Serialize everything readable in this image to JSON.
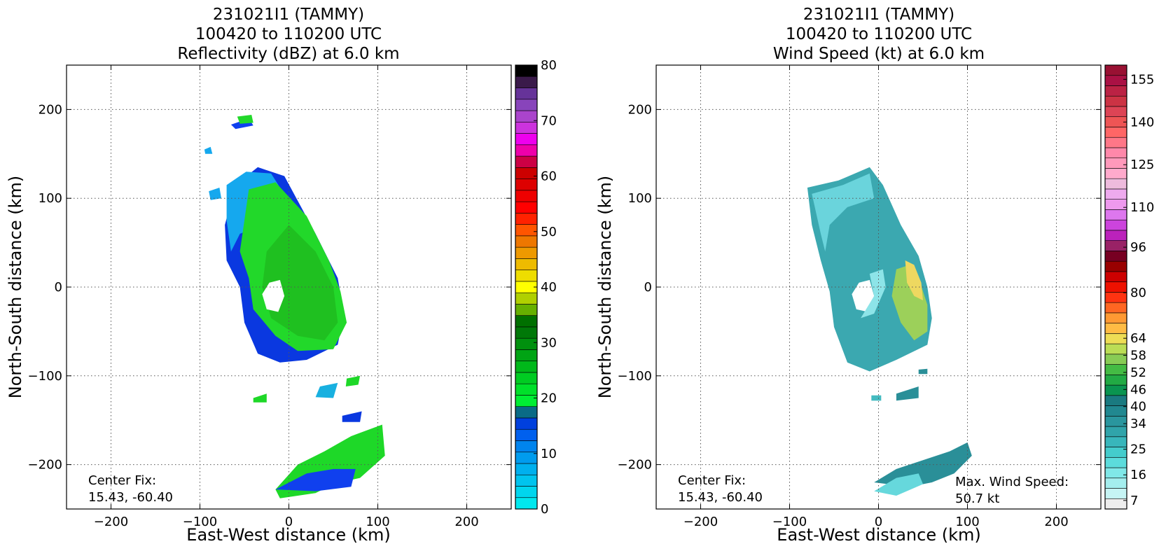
{
  "chart_data": [
    {
      "type": "heatmap",
      "title_lines": [
        "231021I1 (TAMMY)",
        "100420 to 110200 UTC",
        "Reflectivity (dBZ) at 6.0 km"
      ],
      "xlabel": "East-West distance (km)",
      "ylabel": "North-South distance (km)",
      "xlim": [
        -250,
        250
      ],
      "ylim": [
        -250,
        250
      ],
      "xticks": [
        -200,
        -100,
        0,
        100,
        200
      ],
      "yticks": [
        -200,
        -100,
        0,
        100,
        200
      ],
      "grid": true,
      "annotation_lines": [
        "Center Fix:",
        "15.43, -60.40"
      ],
      "colorbar": {
        "min": 0,
        "max": 80,
        "step": 2.5,
        "ticks": [
          0,
          10,
          20,
          30,
          40,
          50,
          60,
          70,
          80
        ],
        "colors": [
          "#00e8ee",
          "#00d6ee",
          "#00c4ee",
          "#00b0ee",
          "#009cee",
          "#0084ee",
          "#0060ee",
          "#0040dd",
          "#0a6b86",
          "#00ee33",
          "#00e02a",
          "#00cc22",
          "#00b81a",
          "#00a414",
          "#00900e",
          "#007808",
          "#007000",
          "#66b000",
          "#b0d000",
          "#ffff00",
          "#eedd00",
          "#eebb00",
          "#ee9900",
          "#ee7700",
          "#ff5500",
          "#ff2200",
          "#ff0000",
          "#ee0000",
          "#dd0000",
          "#cc0000",
          "#cc0044",
          "#ee00aa",
          "#ee00ee",
          "#cc33dd",
          "#aa44cc",
          "#8844bb",
          "#663399",
          "#3a1a4a",
          "#000000"
        ]
      },
      "regions": [
        {
          "name": "eyewall-outer",
          "color": "#0a38e0",
          "points": [
            [
              -60,
              115
            ],
            [
              -35,
              135
            ],
            [
              -5,
              125
            ],
            [
              30,
              60
            ],
            [
              55,
              10
            ],
            [
              62,
              -30
            ],
            [
              55,
              -65
            ],
            [
              20,
              -82
            ],
            [
              -10,
              -85
            ],
            [
              -35,
              -75
            ],
            [
              -50,
              -40
            ],
            [
              -55,
              0
            ],
            [
              -70,
              30
            ],
            [
              -72,
              70
            ]
          ]
        },
        {
          "name": "eyewall-cyan",
          "color": "#15a8ee",
          "points": [
            [
              -70,
              115
            ],
            [
              -48,
              130
            ],
            [
              -20,
              128
            ],
            [
              10,
              80
            ],
            [
              -30,
              70
            ],
            [
              -55,
              60
            ],
            [
              -65,
              40
            ],
            [
              -70,
              75
            ]
          ]
        },
        {
          "name": "main-rain",
          "color": "#22d82a",
          "points": [
            [
              -45,
              110
            ],
            [
              -15,
              118
            ],
            [
              20,
              80
            ],
            [
              45,
              30
            ],
            [
              58,
              -5
            ],
            [
              65,
              -40
            ],
            [
              50,
              -70
            ],
            [
              10,
              -72
            ],
            [
              -15,
              -55
            ],
            [
              -40,
              -25
            ],
            [
              -45,
              10
            ],
            [
              -55,
              40
            ],
            [
              -50,
              75
            ]
          ]
        },
        {
          "name": "inner-green",
          "color": "#1fc020",
          "points": [
            [
              0,
              70
            ],
            [
              30,
              40
            ],
            [
              50,
              0
            ],
            [
              55,
              -40
            ],
            [
              40,
              -60
            ],
            [
              10,
              -55
            ],
            [
              -20,
              -35
            ],
            [
              -30,
              0
            ],
            [
              -25,
              40
            ]
          ]
        },
        {
          "name": "eye",
          "color": "#ffffff",
          "points": [
            [
              -22,
              5
            ],
            [
              -10,
              8
            ],
            [
              -5,
              -10
            ],
            [
              -12,
              -28
            ],
            [
              -25,
              -25
            ],
            [
              -30,
              -8
            ]
          ]
        },
        {
          "name": "south-band",
          "color": "#1ed828",
          "points": [
            [
              -15,
              -228
            ],
            [
              10,
              -200
            ],
            [
              40,
              -185
            ],
            [
              70,
              -168
            ],
            [
              105,
              -155
            ],
            [
              108,
              -190
            ],
            [
              80,
              -215
            ],
            [
              50,
              -222
            ],
            [
              30,
              -232
            ],
            [
              -10,
              -238
            ]
          ]
        },
        {
          "name": "south-band-blue",
          "color": "#1040ee",
          "points": [
            [
              -15,
              -228
            ],
            [
              20,
              -210
            ],
            [
              50,
              -205
            ],
            [
              75,
              -205
            ],
            [
              70,
              -225
            ],
            [
              30,
              -230
            ]
          ]
        },
        {
          "name": "cell-a",
          "color": "#1ed828",
          "points": [
            [
              -40,
              -125
            ],
            [
              -25,
              -120
            ],
            [
              -25,
              -130
            ],
            [
              -40,
              -130
            ]
          ]
        },
        {
          "name": "cell-b",
          "color": "#18b0e0",
          "points": [
            [
              35,
              -112
            ],
            [
              55,
              -108
            ],
            [
              50,
              -125
            ],
            [
              30,
              -124
            ]
          ]
        },
        {
          "name": "cell-c",
          "color": "#1ed828",
          "points": [
            [
              65,
              -103
            ],
            [
              80,
              -100
            ],
            [
              78,
              -110
            ],
            [
              64,
              -112
            ]
          ]
        },
        {
          "name": "cell-d",
          "color": "#0a38e0",
          "points": [
            [
              60,
              -145
            ],
            [
              82,
              -140
            ],
            [
              80,
              -152
            ],
            [
              60,
              -152
            ]
          ]
        },
        {
          "name": "cell-e",
          "color": "#1040ee",
          "points": [
            [
              -65,
              183
            ],
            [
              -45,
              190
            ],
            [
              -40,
              182
            ],
            [
              -60,
              178
            ]
          ]
        },
        {
          "name": "cell-f",
          "color": "#22d82a",
          "points": [
            [
              -58,
              192
            ],
            [
              -42,
              194
            ],
            [
              -40,
              185
            ],
            [
              -55,
              184
            ]
          ]
        },
        {
          "name": "cell-g",
          "color": "#15a8ee",
          "points": [
            [
              -90,
              108
            ],
            [
              -78,
              112
            ],
            [
              -76,
              100
            ],
            [
              -88,
              98
            ]
          ]
        },
        {
          "name": "cell-h",
          "color": "#15a8ee",
          "points": [
            [
              -95,
              155
            ],
            [
              -88,
              158
            ],
            [
              -86,
              150
            ],
            [
              -94,
              150
            ]
          ]
        }
      ]
    },
    {
      "type": "heatmap",
      "title_lines": [
        "231021I1 (TAMMY)",
        "100420 to 110200 UTC",
        "Wind Speed (kt) at 6.0 km"
      ],
      "xlabel": "East-West distance (km)",
      "ylabel": "North-South distance (km)",
      "xlim": [
        -250,
        250
      ],
      "ylim": [
        -250,
        250
      ],
      "xticks": [
        -200,
        -100,
        0,
        100,
        200
      ],
      "yticks": [
        -200,
        -100,
        0,
        100,
        200
      ],
      "grid": true,
      "annotation_lines": [
        "Center Fix:",
        "15.43, -60.40"
      ],
      "annotation2_lines": [
        "Max. Wind Speed:",
        "50.7 kt"
      ],
      "colorbar": {
        "min": 4,
        "max": 160,
        "step": 3,
        "ticks": [
          7,
          16,
          25,
          34,
          40,
          46,
          52,
          58,
          64,
          80,
          96,
          110,
          125,
          140,
          155
        ],
        "colors": [
          "#eeeeee",
          "#c6f4f4",
          "#a4eeee",
          "#80e8e8",
          "#5cdcdc",
          "#44cccc",
          "#38b6bb",
          "#30a4aa",
          "#2a969e",
          "#218890",
          "#1a7a80",
          "#0a9450",
          "#22aa44",
          "#44bb44",
          "#88cc55",
          "#bbdd55",
          "#eedd55",
          "#ffbb44",
          "#ff9933",
          "#ff6622",
          "#ff3311",
          "#ee1100",
          "#cc0000",
          "#990000",
          "#770022",
          "#992266",
          "#bb22bb",
          "#cc44dd",
          "#dd77ee",
          "#ee99ee",
          "#eeaaee",
          "#eebbdd",
          "#ffaacc",
          "#ff99bb",
          "#ff88aa",
          "#ff7788",
          "#ff6666",
          "#ee5555",
          "#dd4455",
          "#cc3344",
          "#bb2244",
          "#aa1144",
          "#991133"
        ]
      },
      "regions": [
        {
          "name": "wind-field",
          "color": "#3ba8b0",
          "points": [
            [
              -80,
              112
            ],
            [
              -45,
              120
            ],
            [
              -10,
              135
            ],
            [
              5,
              115
            ],
            [
              25,
              70
            ],
            [
              45,
              35
            ],
            [
              55,
              0
            ],
            [
              60,
              -35
            ],
            [
              55,
              -65
            ],
            [
              20,
              -82
            ],
            [
              -10,
              -95
            ],
            [
              -35,
              -85
            ],
            [
              -50,
              -45
            ],
            [
              -55,
              -5
            ],
            [
              -65,
              30
            ],
            [
              -75,
              70
            ]
          ]
        },
        {
          "name": "wind-light",
          "color": "#6ad4dc",
          "points": [
            [
              -75,
              105
            ],
            [
              -40,
              115
            ],
            [
              -10,
              128
            ],
            [
              -5,
              100
            ],
            [
              -35,
              90
            ],
            [
              -55,
              70
            ],
            [
              -60,
              40
            ],
            [
              -65,
              60
            ]
          ]
        },
        {
          "name": "wind-core",
          "color": "#9cd05a",
          "points": [
            [
              20,
              20
            ],
            [
              35,
              25
            ],
            [
              45,
              10
            ],
            [
              55,
              -20
            ],
            [
              55,
              -50
            ],
            [
              40,
              -60
            ],
            [
              25,
              -40
            ],
            [
              15,
              -10
            ]
          ]
        },
        {
          "name": "wind-max",
          "color": "#eed860",
          "points": [
            [
              30,
              30
            ],
            [
              40,
              25
            ],
            [
              48,
              5
            ],
            [
              50,
              -15
            ],
            [
              40,
              -10
            ],
            [
              32,
              5
            ]
          ]
        },
        {
          "name": "wind-eye",
          "color": "#ffffff",
          "points": [
            [
              -22,
              5
            ],
            [
              -10,
              8
            ],
            [
              -5,
              -10
            ],
            [
              -12,
              -28
            ],
            [
              -25,
              -25
            ],
            [
              -30,
              -8
            ]
          ]
        },
        {
          "name": "wind-eye-rim",
          "color": "#8de4e8",
          "points": [
            [
              -10,
              15
            ],
            [
              5,
              20
            ],
            [
              8,
              0
            ],
            [
              -5,
              -30
            ],
            [
              -20,
              -35
            ],
            [
              -5,
              -10
            ]
          ]
        },
        {
          "name": "south-wind",
          "color": "#2a8f98",
          "points": [
            [
              -5,
              -220
            ],
            [
              20,
              -205
            ],
            [
              50,
              -195
            ],
            [
              80,
              -185
            ],
            [
              100,
              -175
            ],
            [
              105,
              -190
            ],
            [
              85,
              -210
            ],
            [
              60,
              -220
            ],
            [
              35,
              -225
            ]
          ]
        },
        {
          "name": "south-wind-light",
          "color": "#66d8dc",
          "points": [
            [
              -5,
              -230
            ],
            [
              20,
              -215
            ],
            [
              45,
              -210
            ],
            [
              50,
              -222
            ],
            [
              20,
              -235
            ]
          ]
        },
        {
          "name": "cell-w1",
          "color": "#2a8f98",
          "points": [
            [
              20,
              -120
            ],
            [
              45,
              -112
            ],
            [
              45,
              -125
            ],
            [
              20,
              -128
            ]
          ]
        },
        {
          "name": "cell-w2",
          "color": "#44bbc0",
          "points": [
            [
              -8,
              -122
            ],
            [
              3,
              -122
            ],
            [
              3,
              -128
            ],
            [
              -8,
              -128
            ]
          ]
        },
        {
          "name": "cell-w3",
          "color": "#2a8f98",
          "points": [
            [
              45,
              -93
            ],
            [
              55,
              -92
            ],
            [
              55,
              -98
            ],
            [
              45,
              -98
            ]
          ]
        }
      ]
    }
  ]
}
